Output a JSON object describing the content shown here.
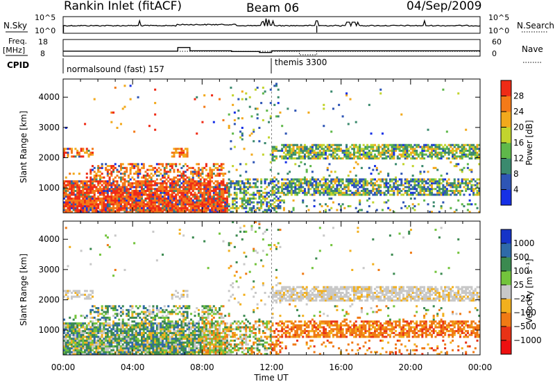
{
  "header": {
    "station": "Rankin Inlet (fitACF)",
    "beam": "Beam 06",
    "date": "04/Sep/2009"
  },
  "status_panels": {
    "nsky_label": "N.Sky",
    "nsky_ticks": [
      "10^5",
      "10^0"
    ],
    "nsearch_label": "N.Search",
    "nsearch_ticks": [
      "10^5",
      "10^0"
    ],
    "freq_label_1": "Freq.",
    "freq_label_2": "[MHz]",
    "freq_ticks": [
      "18",
      "8"
    ],
    "nave_label": "Nave",
    "nave_ticks": [
      "60",
      "0"
    ],
    "cpid_label": "CPID",
    "cpid_segments": [
      {
        "text": "normalsound (fast) 157",
        "start_hour": 0
      },
      {
        "text": "themis 3300",
        "start_hour": 12
      }
    ]
  },
  "chart_data": [
    {
      "type": "heatmap",
      "parameter": "Power",
      "ylabel": "Slant Range [km]",
      "xlabel": "Time UT",
      "xlim": [
        0,
        24
      ],
      "ylim": [
        180,
        4600
      ],
      "x_ticks": [
        "00:00",
        "04:00",
        "08:00",
        "12:00",
        "16:00",
        "20:00",
        "00:00"
      ],
      "y_ticks": [
        1000,
        2000,
        3000,
        4000
      ],
      "colorbar": {
        "label": "Power [dB]",
        "ticks": [
          "4",
          "8",
          "12",
          "16",
          "20",
          "24",
          "28"
        ],
        "colors": [
          "#1630e6",
          "#2e55b5",
          "#3b8a6e",
          "#5fb84a",
          "#c2d42e",
          "#f2a91c",
          "#f47a18",
          "#ef2b16"
        ]
      }
    },
    {
      "type": "heatmap",
      "parameter": "Velocity",
      "ylabel": "Slant Range [km]",
      "xlabel": "Time UT",
      "xlim": [
        0,
        24
      ],
      "ylim": [
        180,
        4600
      ],
      "x_ticks": [
        "00:00",
        "04:00",
        "08:00",
        "12:00",
        "16:00",
        "20:00",
        "00:00"
      ],
      "y_ticks": [
        1000,
        2000,
        3000,
        4000
      ],
      "colorbar": {
        "label": "Velocity [m s⁻¹]",
        "ticks": [
          "1000",
          "500",
          "100",
          "25",
          "−25",
          "−100",
          "−500",
          "−1000"
        ],
        "colors": [
          "#1634c8",
          "#2f6aa8",
          "#3b8a50",
          "#73c43c",
          "#c8c8c8",
          "#f2b01e",
          "#f07a14",
          "#e83216",
          "#ee1010"
        ]
      }
    }
  ]
}
